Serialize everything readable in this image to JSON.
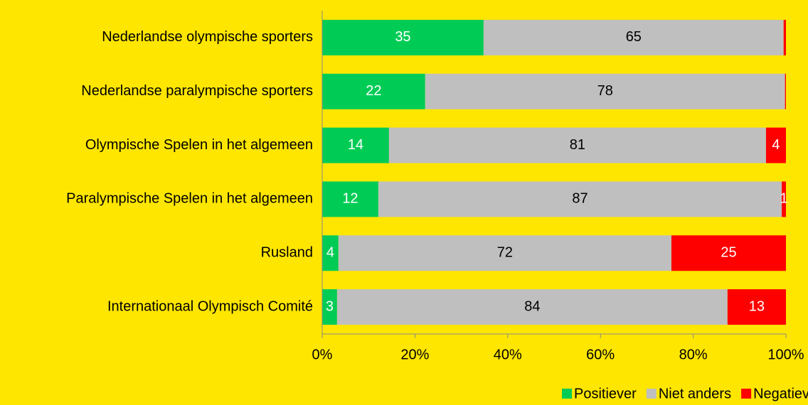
{
  "chart_data": {
    "type": "bar",
    "orientation": "horizontal",
    "stacked": true,
    "categories": [
      "Nederlandse olympische sporters",
      "Nederlandse paralympische sporters",
      "Olympische Spelen in het algemeen",
      "Paralympische Spelen in het algemeen",
      "Rusland",
      "Internationaal Olympisch Comité"
    ],
    "series": [
      {
        "name": "Positiever",
        "color": "#00cc55",
        "label_color": "#ffffff",
        "values": [
          34.8,
          22.2,
          14.4,
          12.1,
          3.5,
          3.2
        ],
        "value_labels": [
          "35",
          "22",
          "14",
          "12",
          "4",
          "3"
        ]
      },
      {
        "name": "Niet anders",
        "color": "#bfbfbf",
        "label_color": "#000000",
        "values": [
          64.7,
          77.6,
          81.3,
          87.0,
          71.8,
          84.2
        ],
        "value_labels": [
          "65",
          "78",
          "81",
          "87",
          "72",
          "84"
        ]
      },
      {
        "name": "Negatiever",
        "color": "#ff0000",
        "label_color": "#ffffff",
        "values": [
          0.5,
          0.2,
          4.3,
          0.9,
          24.7,
          12.6
        ],
        "value_labels": [
          null,
          null,
          "4",
          "1",
          "25",
          "13"
        ]
      }
    ],
    "xlim": [
      0,
      100
    ],
    "xticks": [
      {
        "value": 0,
        "label": "0%"
      },
      {
        "value": 20,
        "label": "20%"
      },
      {
        "value": 40,
        "label": "40%"
      },
      {
        "value": 60,
        "label": "60%"
      },
      {
        "value": 80,
        "label": "80%"
      },
      {
        "value": 100,
        "label": "100%"
      }
    ],
    "legend": "bottom"
  }
}
